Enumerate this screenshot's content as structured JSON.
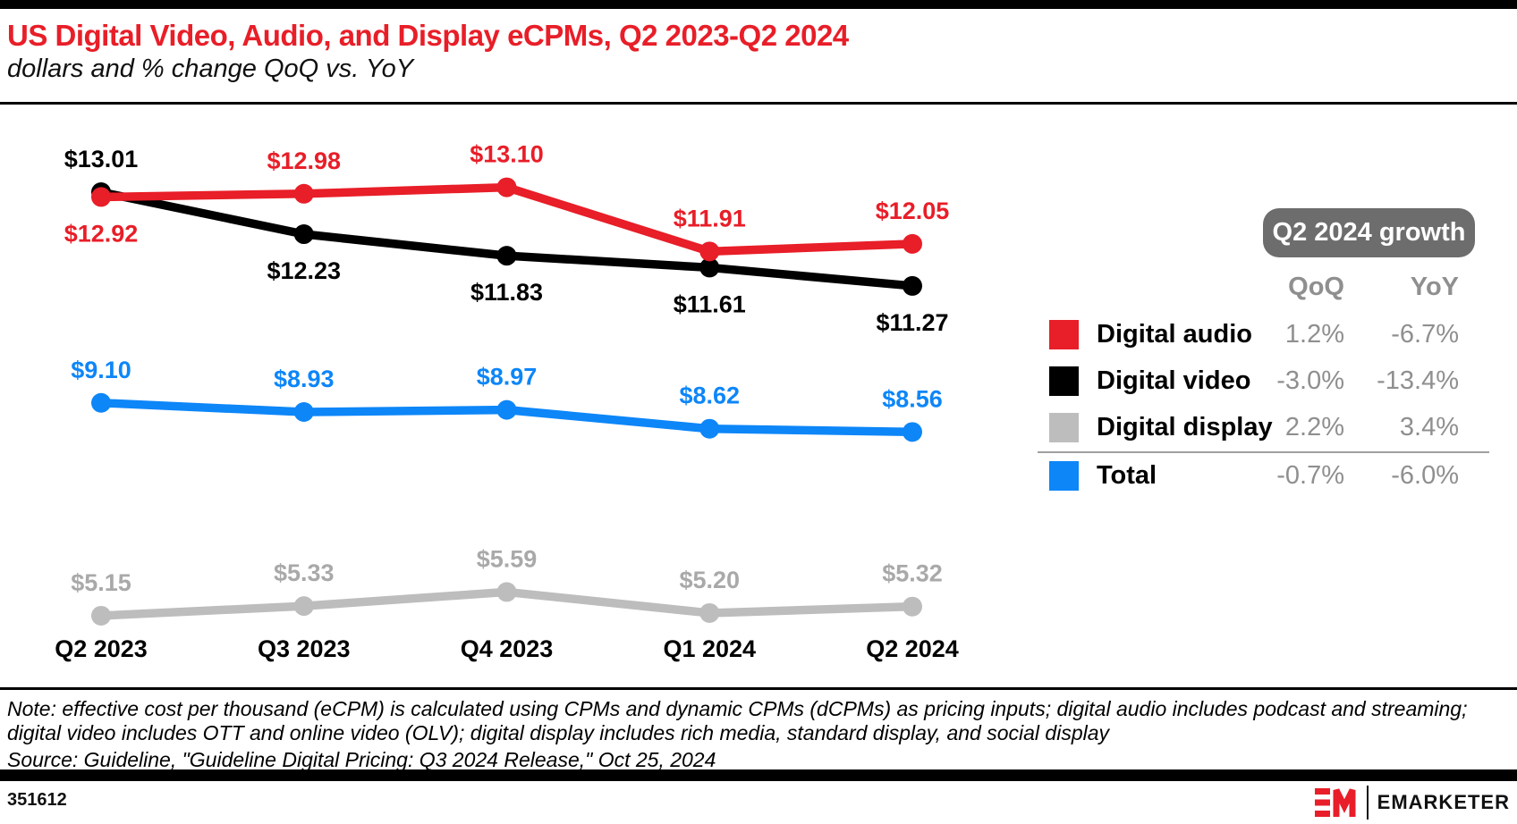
{
  "header": {
    "title": "US Digital Video, Audio, and Display eCPMs, Q2 2023-Q2 2024",
    "subtitle": "dollars and % change QoQ vs. YoY"
  },
  "colors": {
    "brand_red": "#e81e28",
    "video_black": "#000000",
    "total_blue": "#0d86f8",
    "display_gray": "#bdbdbd",
    "badge_gray": "#6d6d6d",
    "value_text_gray": "#8f8f8f"
  },
  "chart_data": {
    "type": "line",
    "unit": "US dollars (eCPM)",
    "categories": [
      "Q2 2023",
      "Q3 2023",
      "Q4 2023",
      "Q1 2024",
      "Q2 2024"
    ],
    "series": [
      {
        "name": "Digital audio",
        "color": "#e81e28",
        "values": [
          12.92,
          12.98,
          13.1,
          11.91,
          12.05
        ],
        "labels": [
          "$12.92",
          "$12.98",
          "$13.10",
          "$11.91",
          "$12.05"
        ],
        "label_pos": [
          "below",
          "above",
          "above",
          "above",
          "above"
        ]
      },
      {
        "name": "Digital video",
        "color": "#000000",
        "values": [
          13.01,
          12.23,
          11.83,
          11.61,
          11.27
        ],
        "labels": [
          "$13.01",
          "$12.23",
          "$11.83",
          "$11.61",
          "$11.27"
        ],
        "label_pos": [
          "above",
          "below",
          "below",
          "below",
          "below"
        ]
      },
      {
        "name": "Digital display",
        "color": "#bdbdbd",
        "label_color": "#a9a9a9",
        "values": [
          5.15,
          5.33,
          5.59,
          5.2,
          5.32
        ],
        "labels": [
          "$5.15",
          "$5.33",
          "$5.59",
          "$5.20",
          "$5.32"
        ],
        "label_pos": [
          "above",
          "above",
          "above",
          "above",
          "above"
        ]
      },
      {
        "name": "Total",
        "color": "#0d86f8",
        "values": [
          9.1,
          8.93,
          8.97,
          8.62,
          8.56
        ],
        "labels": [
          "$9.10",
          "$8.93",
          "$8.97",
          "$8.62",
          "$8.56"
        ],
        "label_pos": [
          "above",
          "above",
          "above",
          "above",
          "above"
        ]
      }
    ],
    "ylim": [
      4.5,
      13.5
    ],
    "gridlines": false,
    "axis_lines": false,
    "legend_position": "right-table"
  },
  "growth_table": {
    "badge_label": "Q2 2024 growth",
    "columns": [
      "QoQ",
      "YoY"
    ],
    "rows": [
      {
        "label": "Digital audio",
        "color": "#e81e28",
        "qoq": "1.2%",
        "yoy": "-6.7%"
      },
      {
        "label": "Digital video",
        "color": "#000000",
        "qoq": "-3.0%",
        "yoy": "-13.4%"
      },
      {
        "label": "Digital display",
        "color": "#bdbdbd",
        "qoq": "2.2%",
        "yoy": "3.4%"
      },
      {
        "label": "Total",
        "color": "#0d86f8",
        "qoq": "-0.7%",
        "yoy": "-6.0%"
      }
    ]
  },
  "footnote": {
    "note": "Note: effective cost per thousand (eCPM) is calculated using CPMs and dynamic CPMs (dCPMs) as pricing inputs; digital audio includes podcast and streaming; digital video includes OTT and online video (OLV); digital display includes rich media, standard display, and social display",
    "source": "Source: Guideline, \"Guideline Digital Pricing: Q3 2024 Release,\" Oct 25, 2024"
  },
  "footer": {
    "chart_id": "351612",
    "brand": "EMARKETER"
  }
}
